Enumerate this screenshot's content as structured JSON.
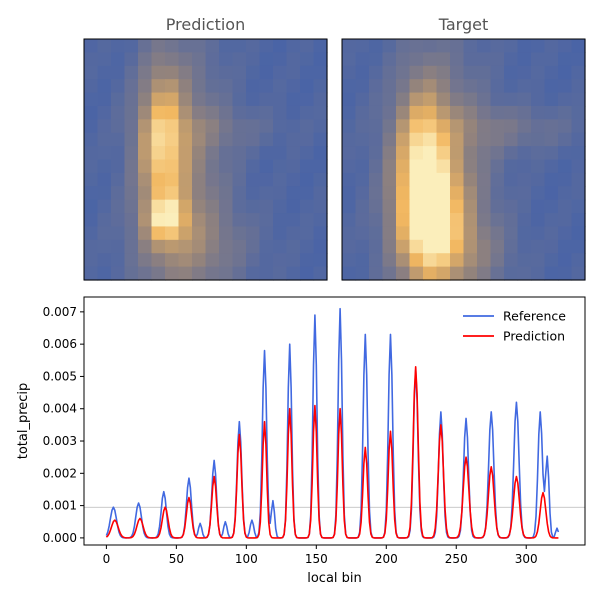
{
  "chart_data": [
    {
      "type": "heatmap",
      "title": "Prediction",
      "grid_cols": 18,
      "grid_rows": 18,
      "colors": {
        "low": "#4a64a6",
        "mid": "#93837c",
        "high": "#f2b760",
        "peak": "#fbeebb"
      },
      "blobs": [
        {
          "cx": 5.3,
          "cy": 7.4,
          "sx": 1.1,
          "sy": 3.8,
          "a": 0.62
        },
        {
          "cx": 5.6,
          "cy": 12.9,
          "sx": 1.0,
          "sy": 1.1,
          "a": 0.55
        },
        {
          "cx": 6.7,
          "cy": 10.0,
          "sx": 2.3,
          "sy": 6.8,
          "a": 0.32
        },
        {
          "cx": 8.0,
          "cy": 15.0,
          "sx": 3.2,
          "sy": 2.0,
          "a": 0.15
        },
        {
          "cx": 9.5,
          "cy": 6.2,
          "sx": 3.6,
          "sy": 1.0,
          "a": 0.1
        }
      ],
      "peaks": [
        {
          "col": 5,
          "row": 12,
          "v": 0.8
        }
      ]
    },
    {
      "type": "heatmap",
      "title": "Target",
      "grid_cols": 18,
      "grid_rows": 18,
      "colors": {
        "low": "#4a64a6",
        "mid": "#93837c",
        "high": "#f2b760",
        "peak": "#fbeebb"
      },
      "blobs": [
        {
          "cx": 5.5,
          "cy": 9.5,
          "sx": 1.3,
          "sy": 4.2,
          "a": 0.68
        },
        {
          "cx": 6.2,
          "cy": 12.8,
          "sx": 1.6,
          "sy": 2.8,
          "a": 0.55
        },
        {
          "cx": 6.7,
          "cy": 10.5,
          "sx": 2.6,
          "sy": 6.5,
          "a": 0.35
        },
        {
          "cx": 11.5,
          "cy": 6.2,
          "sx": 4.0,
          "sy": 1.2,
          "a": 0.15
        },
        {
          "cx": 8.0,
          "cy": 15.5,
          "sx": 2.6,
          "sy": 1.8,
          "a": 0.2
        }
      ],
      "peaks": [
        {
          "col": 5,
          "row": 9,
          "v": 1.0
        },
        {
          "col": 5,
          "row": 10,
          "v": 0.95
        },
        {
          "col": 6,
          "row": 11,
          "v": 0.9
        }
      ]
    },
    {
      "type": "line",
      "xlabel": "local bin",
      "ylabel": "total_precip",
      "xlim": [
        -16,
        342
      ],
      "ylim": [
        -0.00022,
        0.00746
      ],
      "xticks": [
        0,
        50,
        100,
        150,
        200,
        250,
        300
      ],
      "yticks": [
        0.0,
        0.001,
        0.002,
        0.003,
        0.004,
        0.005,
        0.006,
        0.007
      ],
      "ytick_labels": [
        "0.000",
        "0.001",
        "0.002",
        "0.003",
        "0.004",
        "0.005",
        "0.006",
        "0.007"
      ],
      "hline": 0.00095,
      "legend_position": "top-right",
      "x_range": [
        0,
        323
      ],
      "series": [
        {
          "name": "Reference",
          "color": "#4169e1",
          "peaks": [
            {
              "x": 5,
              "y": 0.00095,
              "w": 2.2
            },
            {
              "x": 23,
              "y": 0.00108,
              "w": 2.0
            },
            {
              "x": 41,
              "y": 0.00143,
              "w": 1.8
            },
            {
              "x": 59,
              "y": 0.00185,
              "w": 1.7
            },
            {
              "x": 67,
              "y": 0.00045,
              "w": 1.2
            },
            {
              "x": 77,
              "y": 0.0024,
              "w": 1.6
            },
            {
              "x": 85,
              "y": 0.0005,
              "w": 1.2
            },
            {
              "x": 95,
              "y": 0.0036,
              "w": 1.6
            },
            {
              "x": 104,
              "y": 0.00055,
              "w": 1.3
            },
            {
              "x": 113,
              "y": 0.0058,
              "w": 1.5
            },
            {
              "x": 119,
              "y": 0.00115,
              "w": 1.2
            },
            {
              "x": 131,
              "y": 0.006,
              "w": 1.4
            },
            {
              "x": 149,
              "y": 0.0069,
              "w": 1.4
            },
            {
              "x": 167,
              "y": 0.0071,
              "w": 1.4
            },
            {
              "x": 185,
              "y": 0.0063,
              "w": 1.5
            },
            {
              "x": 203,
              "y": 0.0063,
              "w": 1.5
            },
            {
              "x": 221,
              "y": 0.0052,
              "w": 1.6
            },
            {
              "x": 239,
              "y": 0.0039,
              "w": 1.6
            },
            {
              "x": 257,
              "y": 0.0037,
              "w": 1.7
            },
            {
              "x": 275,
              "y": 0.0039,
              "w": 1.8
            },
            {
              "x": 293,
              "y": 0.0042,
              "w": 1.8
            },
            {
              "x": 310,
              "y": 0.0039,
              "w": 1.6
            },
            {
              "x": 315,
              "y": 0.0025,
              "w": 1.3
            },
            {
              "x": 322,
              "y": 0.0003,
              "w": 1.0
            }
          ]
        },
        {
          "name": "Prediction",
          "color": "#ff0000",
          "peaks": [
            {
              "x": 6,
              "y": 0.00055,
              "w": 2.4
            },
            {
              "x": 24,
              "y": 0.0006,
              "w": 2.2
            },
            {
              "x": 42,
              "y": 0.00095,
              "w": 2.0
            },
            {
              "x": 59,
              "y": 0.00125,
              "w": 1.8
            },
            {
              "x": 77,
              "y": 0.0019,
              "w": 1.7
            },
            {
              "x": 95,
              "y": 0.0032,
              "w": 1.6
            },
            {
              "x": 113,
              "y": 0.0036,
              "w": 1.5
            },
            {
              "x": 131,
              "y": 0.004,
              "w": 1.5
            },
            {
              "x": 149,
              "y": 0.0041,
              "w": 1.5
            },
            {
              "x": 167,
              "y": 0.004,
              "w": 1.5
            },
            {
              "x": 185,
              "y": 0.0028,
              "w": 1.6
            },
            {
              "x": 203,
              "y": 0.0033,
              "w": 1.6
            },
            {
              "x": 221,
              "y": 0.0053,
              "w": 1.7
            },
            {
              "x": 239,
              "y": 0.0035,
              "w": 1.8
            },
            {
              "x": 257,
              "y": 0.0025,
              "w": 2.0
            },
            {
              "x": 275,
              "y": 0.0022,
              "w": 2.0
            },
            {
              "x": 293,
              "y": 0.0019,
              "w": 2.1
            },
            {
              "x": 312,
              "y": 0.0014,
              "w": 2.0
            }
          ]
        }
      ]
    }
  ]
}
